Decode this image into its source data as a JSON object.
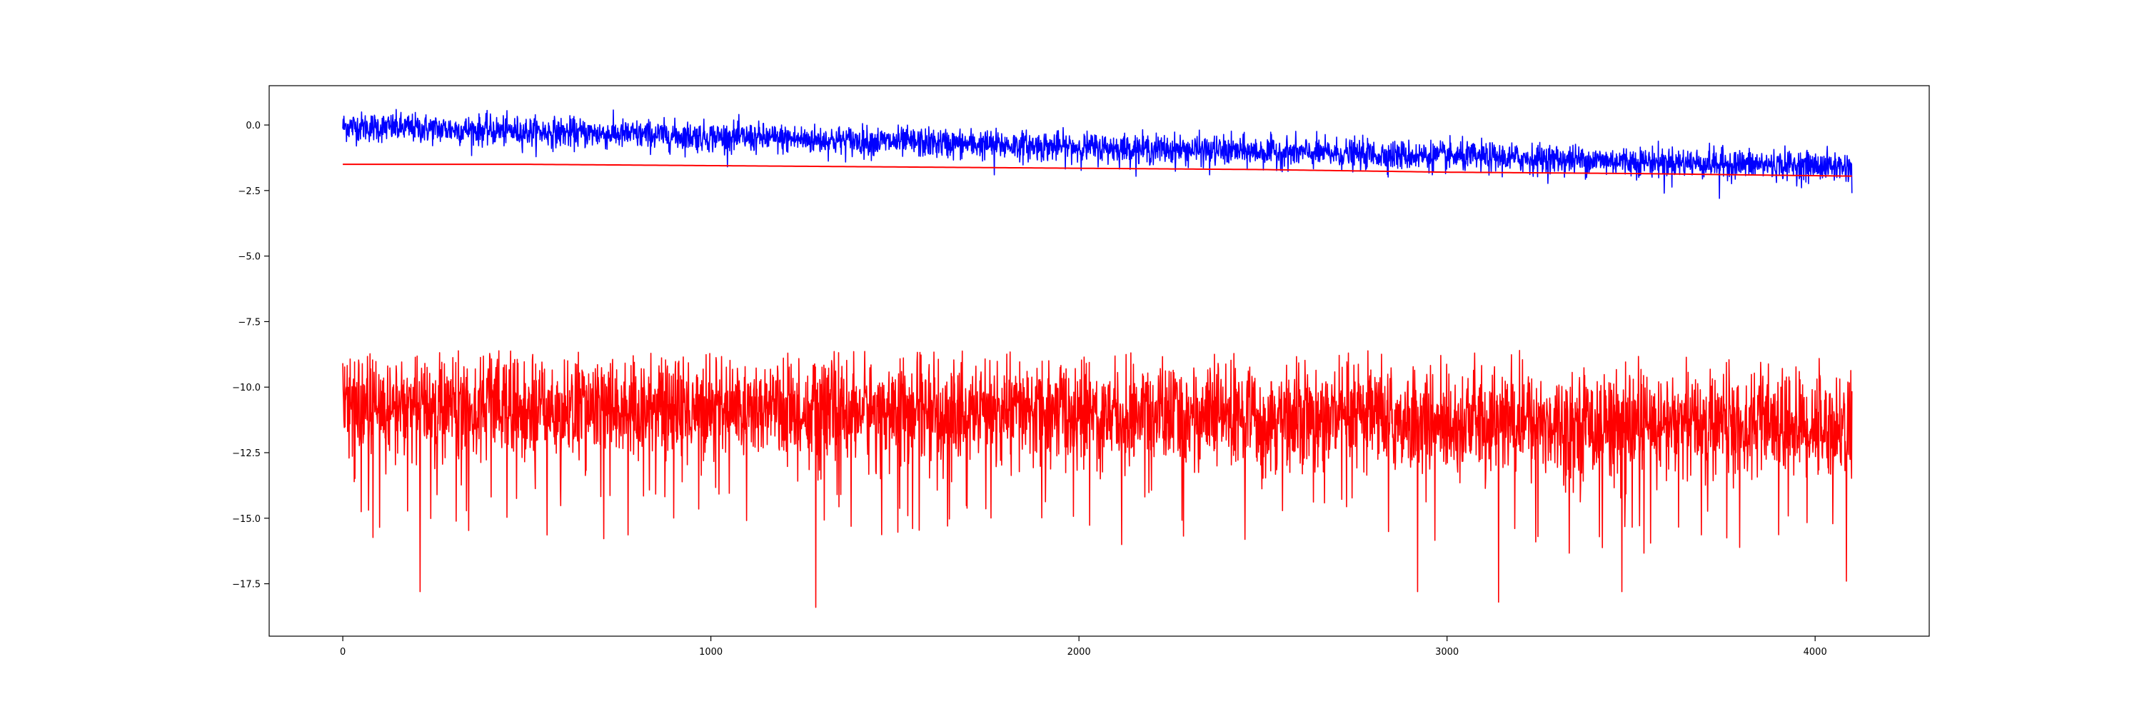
{
  "chart_data": {
    "type": "line",
    "title": "",
    "xlabel": "",
    "ylabel": "",
    "xlim": [
      -200,
      4310
    ],
    "ylim": [
      -19.5,
      1.5
    ],
    "x_ticks": [
      0,
      1000,
      2000,
      3000,
      4000
    ],
    "x_tick_labels": [
      "0",
      "1000",
      "2000",
      "3000",
      "4000"
    ],
    "y_ticks": [
      0.0,
      -2.5,
      -5.0,
      -7.5,
      -10.0,
      -12.5,
      -15.0,
      -17.5
    ],
    "y_tick_labels": [
      "0.0",
      "−2.5",
      "−5.0",
      "−7.5",
      "−10.0",
      "−12.5",
      "−15.0",
      "−17.5"
    ],
    "grid": false,
    "x_range": [
      0,
      4100
    ],
    "series": [
      {
        "color": "#0000ff",
        "style": "noisy",
        "trend": [
          [
            0,
            -0.05
          ],
          [
            1000,
            -0.45
          ],
          [
            2000,
            -0.85
          ],
          [
            3000,
            -1.2
          ],
          [
            4100,
            -1.6
          ]
        ],
        "typical_min_max": [
          -2.8,
          0.6
        ],
        "spikes": [
          [
            1770,
            -1.9
          ],
          [
            2355,
            -1.9
          ],
          [
            3590,
            -2.6
          ],
          [
            3740,
            -2.8
          ],
          [
            4100,
            -2.6
          ]
        ]
      },
      {
        "color": "#ff0000",
        "style": "smooth",
        "trend": [
          [
            0,
            -1.5
          ],
          [
            500,
            -1.5
          ],
          [
            1000,
            -1.55
          ],
          [
            1500,
            -1.6
          ],
          [
            2000,
            -1.65
          ],
          [
            2500,
            -1.7
          ],
          [
            3000,
            -1.8
          ],
          [
            3500,
            -1.85
          ],
          [
            4100,
            -1.95
          ]
        ]
      },
      {
        "color": "#ff0000",
        "style": "noisy",
        "trend": [
          [
            0,
            -10.8
          ],
          [
            1000,
            -10.8
          ],
          [
            2000,
            -11.0
          ],
          [
            3000,
            -11.3
          ],
          [
            4100,
            -11.5
          ]
        ],
        "typical_min_max": [
          -18.4,
          -8.6
        ],
        "spikes": [
          [
            210,
            -17.8
          ],
          [
            1285,
            -18.4
          ],
          [
            2920,
            -17.8
          ],
          [
            3140,
            -18.2
          ],
          [
            3475,
            -17.8
          ],
          [
            4085,
            -17.4
          ]
        ]
      }
    ]
  }
}
